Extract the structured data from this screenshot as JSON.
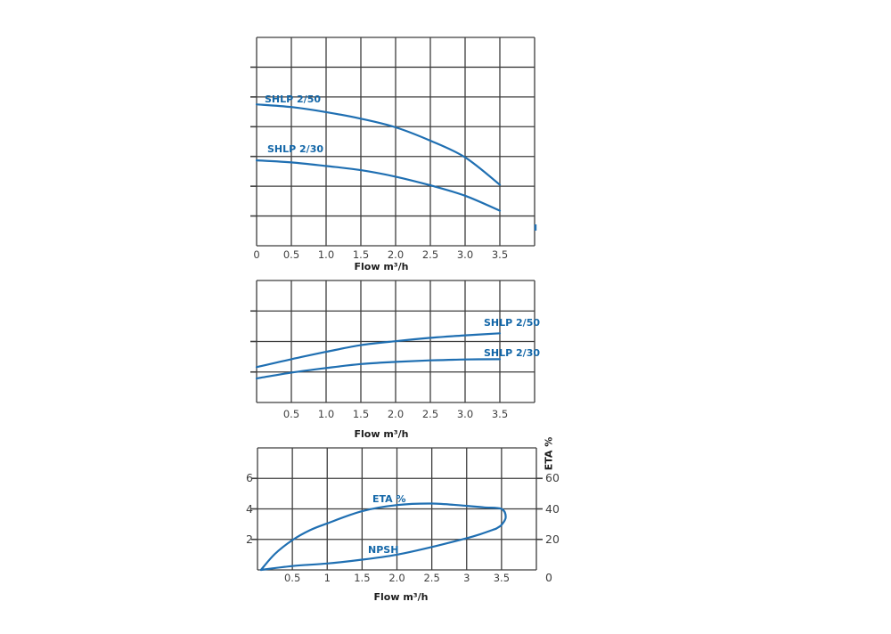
{
  "page": {
    "background": "#ffffff"
  },
  "colors": {
    "curve": "#1f6fb2",
    "curve_label_text": "#1467a8",
    "grid": "#3d3d3d",
    "tick_text": "#3f3f3f",
    "axis_title_text": "#1c1c1c"
  },
  "chart_data": [
    {
      "type": "line",
      "title": "",
      "xlabel": "Flow m³/h",
      "ylabel": "",
      "xlim": [
        0,
        4
      ],
      "ylim": [
        0,
        7
      ],
      "y_axis_note": "head axis unlabeled; y values given in grid rows from bottom",
      "grid": true,
      "legend_position": "on-curve",
      "x_ticks": [
        {
          "v": 0,
          "label": "0"
        },
        {
          "v": 0.5,
          "label": "0.5"
        },
        {
          "v": 1,
          "label": "1.0"
        },
        {
          "v": 1.5,
          "label": "1.5"
        },
        {
          "v": 2,
          "label": "2.0"
        },
        {
          "v": 2.5,
          "label": "2.5"
        },
        {
          "v": 3,
          "label": "3.0"
        },
        {
          "v": 3.5,
          "label": "3.5"
        }
      ],
      "series": [
        {
          "name": "SHLP 2/50",
          "x": [
            0,
            0.5,
            1,
            1.5,
            2,
            2.5,
            3,
            3.5
          ],
          "y": [
            4.75,
            4.66,
            4.49,
            4.27,
            3.98,
            3.53,
            2.97,
            2.05
          ]
        },
        {
          "name": "SHLP 2/30",
          "x": [
            0,
            0.5,
            1,
            1.5,
            2,
            2.5,
            3,
            3.5
          ],
          "y": [
            2.87,
            2.8,
            2.68,
            2.54,
            2.32,
            2.03,
            1.68,
            1.18
          ]
        }
      ]
    },
    {
      "type": "line",
      "title": "",
      "xlabel": "Flow m³/h",
      "ylabel": "",
      "xlim": [
        0,
        4
      ],
      "ylim": [
        0,
        4
      ],
      "y_axis_note": "axis unlabeled; y values given in grid rows from bottom",
      "grid": true,
      "legend_position": "on-curve",
      "x_ticks": [
        {
          "v": 0.5,
          "label": "0.5"
        },
        {
          "v": 1,
          "label": "1.0"
        },
        {
          "v": 1.5,
          "label": "1.5"
        },
        {
          "v": 2,
          "label": "2.0"
        },
        {
          "v": 2.5,
          "label": "2.5"
        },
        {
          "v": 3,
          "label": "3.0"
        },
        {
          "v": 3.5,
          "label": "3.5"
        }
      ],
      "series": [
        {
          "name": "SHLP 2/50",
          "x": [
            0,
            0.5,
            1,
            1.5,
            2,
            2.5,
            3,
            3.5
          ],
          "y": [
            1.16,
            1.42,
            1.66,
            1.88,
            2.01,
            2.12,
            2.2,
            2.27
          ]
        },
        {
          "name": "SHLP 2/30",
          "x": [
            0,
            0.5,
            1,
            1.5,
            2,
            2.5,
            3,
            3.5
          ],
          "y": [
            0.79,
            0.98,
            1.13,
            1.26,
            1.33,
            1.38,
            1.41,
            1.42
          ]
        }
      ]
    },
    {
      "type": "line",
      "title": "",
      "xlabel": "Flow m³/h",
      "xlim": [
        0,
        4
      ],
      "grid": true,
      "legend_position": "on-curve",
      "x_ticks": [
        {
          "v": 0.5,
          "label": "0.5"
        },
        {
          "v": 1,
          "label": "1"
        },
        {
          "v": 1.5,
          "label": "1.5"
        },
        {
          "v": 2,
          "label": "2.0"
        },
        {
          "v": 2.5,
          "label": "2.5"
        },
        {
          "v": 3,
          "label": "3"
        },
        {
          "v": 3.5,
          "label": "3.5"
        }
      ],
      "y_left": {
        "lim": [
          0,
          8
        ],
        "ticks": [
          {
            "v": 6,
            "label": "6"
          },
          {
            "v": 4,
            "label": "4"
          },
          {
            "v": 2,
            "label": "2"
          }
        ]
      },
      "y_right": {
        "title": "ETA %",
        "lim": [
          0,
          80
        ],
        "ticks": [
          {
            "v": 60,
            "label": "60"
          },
          {
            "v": 40,
            "label": "40"
          },
          {
            "v": 20,
            "label": "20"
          },
          {
            "v": 0,
            "label": "0"
          }
        ]
      },
      "series": [
        {
          "name": "ETA %",
          "axis": "right",
          "x": [
            0.05,
            0.25,
            0.5,
            0.75,
            1,
            1.5,
            2,
            2.5,
            3,
            3.25,
            3.5,
            3.56,
            3.5,
            3.42
          ],
          "y": [
            0,
            10.5,
            19.5,
            26,
            30.5,
            38.5,
            42.5,
            43.5,
            42,
            41,
            40,
            34.5,
            29.5,
            27
          ]
        },
        {
          "name": "NPSH",
          "axis": "left",
          "x": [
            0.05,
            0.5,
            1,
            1.5,
            2,
            2.5,
            3,
            3.2,
            3.42
          ],
          "y": [
            0,
            0.25,
            0.42,
            0.67,
            1.0,
            1.5,
            2.08,
            2.35,
            2.7
          ]
        }
      ]
    }
  ]
}
